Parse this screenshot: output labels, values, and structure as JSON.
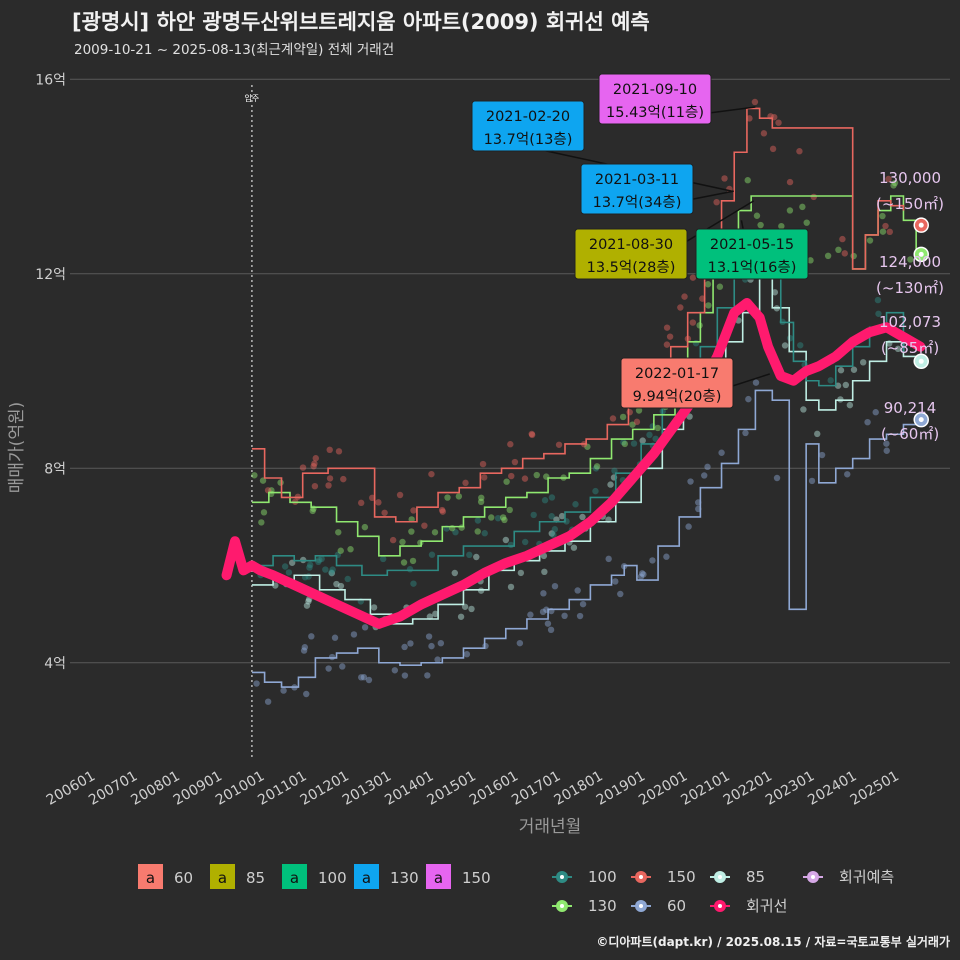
{
  "title": "[광명시] 하안 광명두산위브트레지움 아파트(2009) 회귀선 예측",
  "subtitle": "2009-10-21 ~ 2025-08-13(최근계약일) 전체 거래건",
  "credit": "©디아파트(dapt.kr) / 2025.08.15 / 자료=국토교통부 실거래가",
  "chart_data": {
    "type": "line",
    "xlabel": "거래년월",
    "ylabel": "매매가(억원)",
    "x_range": [
      2005.5,
      2026.3
    ],
    "ylim": [
      2.0,
      16.5
    ],
    "x_ticks": [
      {
        "x": 2006.0,
        "label": "200601"
      },
      {
        "x": 2007.0,
        "label": "200701"
      },
      {
        "x": 2008.0,
        "label": "200801"
      },
      {
        "x": 2009.0,
        "label": "200901"
      },
      {
        "x": 2010.0,
        "label": "201001"
      },
      {
        "x": 2011.0,
        "label": "201101"
      },
      {
        "x": 2012.0,
        "label": "201201"
      },
      {
        "x": 2013.0,
        "label": "201301"
      },
      {
        "x": 2014.0,
        "label": "201401"
      },
      {
        "x": 2015.0,
        "label": "201501"
      },
      {
        "x": 2016.0,
        "label": "201601"
      },
      {
        "x": 2017.0,
        "label": "201701"
      },
      {
        "x": 2018.0,
        "label": "201801"
      },
      {
        "x": 2019.0,
        "label": "201901"
      },
      {
        "x": 2020.0,
        "label": "202001"
      },
      {
        "x": 2021.0,
        "label": "202101"
      },
      {
        "x": 2022.0,
        "label": "202201"
      },
      {
        "x": 2023.0,
        "label": "202301"
      },
      {
        "x": 2024.0,
        "label": "202401"
      },
      {
        "x": 2025.0,
        "label": "202501"
      }
    ],
    "y_ticks": [
      {
        "y": 4,
        "label": "4억"
      },
      {
        "y": 8,
        "label": "8억"
      },
      {
        "y": 12,
        "label": "12억"
      },
      {
        "y": 16,
        "label": "16억"
      }
    ],
    "move_in": {
      "x": 2009.8,
      "label": "입주"
    },
    "series": [
      {
        "name": "60",
        "color": "#8fa8d4",
        "x": [
          2009.8,
          2010.1,
          2010.5,
          2010.9,
          2011.3,
          2011.8,
          2012.3,
          2012.8,
          2013.3,
          2013.8,
          2014.3,
          2014.8,
          2015.3,
          2015.8,
          2016.3,
          2016.8,
          2017.3,
          2017.8,
          2018.3,
          2018.6,
          2018.9,
          2019.4,
          2019.9,
          2020.4,
          2020.9,
          2021.3,
          2021.7,
          2022.1,
          2022.5,
          2022.9,
          2023.2,
          2023.6,
          2024.0,
          2024.4,
          2024.8,
          2025.2,
          2025.5
        ],
        "y": [
          3.8,
          3.6,
          3.5,
          3.7,
          4.1,
          4.2,
          4.3,
          4.0,
          3.95,
          4.0,
          4.1,
          4.3,
          4.5,
          4.7,
          4.9,
          5.1,
          5.3,
          5.6,
          5.8,
          6.0,
          5.7,
          6.4,
          7.0,
          7.6,
          8.1,
          8.8,
          9.6,
          9.4,
          5.1,
          8.5,
          7.7,
          8.0,
          8.2,
          8.6,
          8.7,
          8.9,
          9.0
        ]
      },
      {
        "name": "85",
        "color": "#bfeee4",
        "x": [
          2009.8,
          2010.3,
          2010.8,
          2011.4,
          2012.0,
          2012.6,
          2013.1,
          2013.6,
          2014.2,
          2014.8,
          2015.4,
          2016.0,
          2016.6,
          2017.2,
          2017.8,
          2018.4,
          2019.0,
          2019.5,
          2020.0,
          2020.5,
          2021.0,
          2021.4,
          2021.8,
          2022.1,
          2022.5,
          2022.9,
          2023.2,
          2023.6,
          2024.0,
          2024.4,
          2024.8,
          2025.2,
          2025.5
        ],
        "y": [
          5.6,
          5.7,
          5.8,
          5.5,
          5.3,
          5.0,
          4.8,
          4.9,
          5.2,
          5.5,
          5.9,
          6.1,
          6.3,
          6.5,
          6.9,
          7.3,
          8.0,
          8.8,
          9.3,
          9.8,
          10.6,
          11.2,
          12.0,
          11.3,
          10.4,
          9.4,
          9.2,
          9.4,
          9.8,
          10.2,
          10.6,
          10.3,
          10.2
        ]
      },
      {
        "name": "100",
        "color": "#2e8b84",
        "x": [
          2009.8,
          2010.3,
          2010.8,
          2011.3,
          2011.8,
          2012.4,
          2013.0,
          2013.6,
          2014.2,
          2014.8,
          2015.4,
          2016.0,
          2016.6,
          2017.2,
          2017.8,
          2018.4,
          2019.0,
          2019.5,
          2020.0,
          2020.4,
          2020.8,
          2021.2,
          2021.6,
          2022.0,
          2022.3,
          2022.6,
          2022.9,
          2023.2,
          2023.6,
          2024.0,
          2024.4,
          2024.8,
          2025.2
        ],
        "y": [
          6.0,
          6.2,
          6.1,
          6.2,
          6.0,
          5.8,
          5.9,
          5.9,
          6.2,
          6.4,
          6.4,
          6.7,
          6.9,
          7.1,
          7.4,
          7.9,
          8.5,
          9.3,
          9.9,
          10.5,
          11.3,
          12.1,
          12.5,
          12.0,
          11.0,
          10.2,
          9.8,
          9.7,
          10.1,
          10.5,
          10.9,
          11.2,
          10.4
        ]
      },
      {
        "name": "130",
        "color": "#90e870",
        "x": [
          2009.8,
          2010.2,
          2010.7,
          2011.2,
          2011.8,
          2012.3,
          2012.8,
          2013.3,
          2013.8,
          2014.3,
          2014.8,
          2015.3,
          2015.8,
          2016.3,
          2016.8,
          2017.3,
          2017.8,
          2018.3,
          2018.8,
          2019.3,
          2019.8,
          2020.1,
          2020.4,
          2020.7,
          2021.0,
          2021.3,
          2021.6,
          2024.0,
          2024.3,
          2024.6,
          2024.9,
          2025.2,
          2025.5
        ],
        "y": [
          7.3,
          7.5,
          7.3,
          7.2,
          6.9,
          6.6,
          6.2,
          6.4,
          6.5,
          6.8,
          7.0,
          7.2,
          7.4,
          7.5,
          7.8,
          7.9,
          8.2,
          8.6,
          8.8,
          9.1,
          9.9,
          10.6,
          11.2,
          12.0,
          12.5,
          13.3,
          13.6,
          12.1,
          12.8,
          13.3,
          13.6,
          13.1,
          12.4
        ]
      },
      {
        "name": "150",
        "color": "#e8675f",
        "x": [
          2009.8,
          2010.1,
          2010.5,
          2011.0,
          2011.6,
          2012.2,
          2012.7,
          2013.2,
          2013.7,
          2014.2,
          2014.7,
          2015.2,
          2015.7,
          2016.2,
          2016.7,
          2017.2,
          2017.7,
          2018.2,
          2018.7,
          2019.2,
          2019.7,
          2020.1,
          2020.5,
          2020.9,
          2021.2,
          2021.5,
          2021.8,
          2022.1,
          2024.0,
          2024.3,
          2024.6,
          2024.9,
          2025.2
        ],
        "y": [
          8.4,
          7.8,
          7.4,
          7.9,
          8.0,
          8.0,
          7.0,
          6.9,
          7.2,
          7.5,
          7.6,
          7.9,
          8.0,
          8.2,
          8.3,
          8.5,
          8.6,
          8.9,
          9.3,
          9.8,
          10.5,
          11.2,
          12.0,
          13.5,
          14.5,
          15.4,
          15.2,
          15.0,
          12.1,
          12.8,
          13.5,
          13.4,
          13.3
        ]
      }
    ],
    "regression": {
      "name": "회귀선",
      "color": "#ff1a6e",
      "x": [
        2009.2,
        2009.4,
        2009.6,
        2009.8,
        2010.0,
        2010.3,
        2010.8,
        2011.3,
        2011.8,
        2012.3,
        2012.8,
        2013.3,
        2013.8,
        2014.3,
        2014.8,
        2015.3,
        2015.8,
        2016.3,
        2016.8,
        2017.3,
        2017.8,
        2018.3,
        2018.8,
        2019.3,
        2019.8,
        2020.3,
        2020.8,
        2021.2,
        2021.5,
        2021.8,
        2022.0,
        2022.3,
        2022.6,
        2022.9,
        2023.2,
        2023.6,
        2024.0,
        2024.4,
        2024.8,
        2025.2,
        2025.6
      ],
      "y": [
        5.8,
        6.5,
        5.9,
        6.0,
        5.9,
        5.8,
        5.6,
        5.4,
        5.2,
        5.0,
        4.8,
        4.95,
        5.2,
        5.4,
        5.6,
        5.85,
        6.05,
        6.2,
        6.4,
        6.6,
        6.9,
        7.3,
        7.8,
        8.3,
        8.9,
        9.5,
        10.3,
        11.2,
        11.4,
        11.1,
        10.5,
        9.9,
        9.8,
        10.0,
        10.1,
        10.3,
        10.6,
        10.8,
        10.9,
        10.7,
        10.5
      ]
    },
    "scatter_count": 340,
    "forecast": [
      {
        "label": "130,000",
        "sub": "(~150㎡)",
        "y": 13.0,
        "color": "#e8675f"
      },
      {
        "label": "124,000",
        "sub": "(~130㎡)",
        "y": 12.4,
        "color": "#90e870"
      },
      {
        "label": "102,073",
        "sub": "(~85㎡)",
        "y": 10.2,
        "color": "#bfeee4"
      },
      {
        "label": "90,214",
        "sub": "(~60㎡)",
        "y": 9.0,
        "color": "#8fa8d4"
      }
    ],
    "callouts": [
      {
        "date": "2021-09-10",
        "price": "15.43억(11층)",
        "x": 2021.7,
        "y": 15.43,
        "color": "#e665f0"
      },
      {
        "date": "2021-02-20",
        "price": "13.7억(13층)",
        "x": 2021.14,
        "y": 13.7,
        "color": "#0ea5f0"
      },
      {
        "date": "2021-03-11",
        "price": "13.7억(34층)",
        "x": 2021.19,
        "y": 13.7,
        "color": "#0ea5f0"
      },
      {
        "date": "2021-08-30",
        "price": "13.5억(28층)",
        "x": 2021.66,
        "y": 13.5,
        "color": "#b0b000"
      },
      {
        "date": "2021-05-15",
        "price": "13.1억(16층)",
        "x": 2021.37,
        "y": 13.1,
        "color": "#00c07c"
      },
      {
        "date": "2022-01-17",
        "price": "9.94억(20층)",
        "x": 2022.04,
        "y": 9.94,
        "color": "#f87b6f"
      }
    ],
    "legend_fill": [
      {
        "label": "60",
        "color": "#f87b6f"
      },
      {
        "label": "85",
        "color": "#b0b000"
      },
      {
        "label": "100",
        "color": "#00c07c"
      },
      {
        "label": "130",
        "color": "#0ea5f0"
      },
      {
        "label": "150",
        "color": "#e665f0"
      }
    ],
    "legend_line": [
      {
        "label": "100",
        "color": "#2e8b84"
      },
      {
        "label": "150",
        "color": "#e8675f"
      },
      {
        "label": "85",
        "color": "#bfeee4"
      },
      {
        "label": "회귀예측",
        "color": "#d6a8e6"
      },
      {
        "label": "130",
        "color": "#90e870"
      },
      {
        "label": "60",
        "color": "#8fa8d4"
      },
      {
        "label": "회귀선",
        "color": "#ff1a6e"
      }
    ],
    "legend_fill_glyph": "a"
  }
}
